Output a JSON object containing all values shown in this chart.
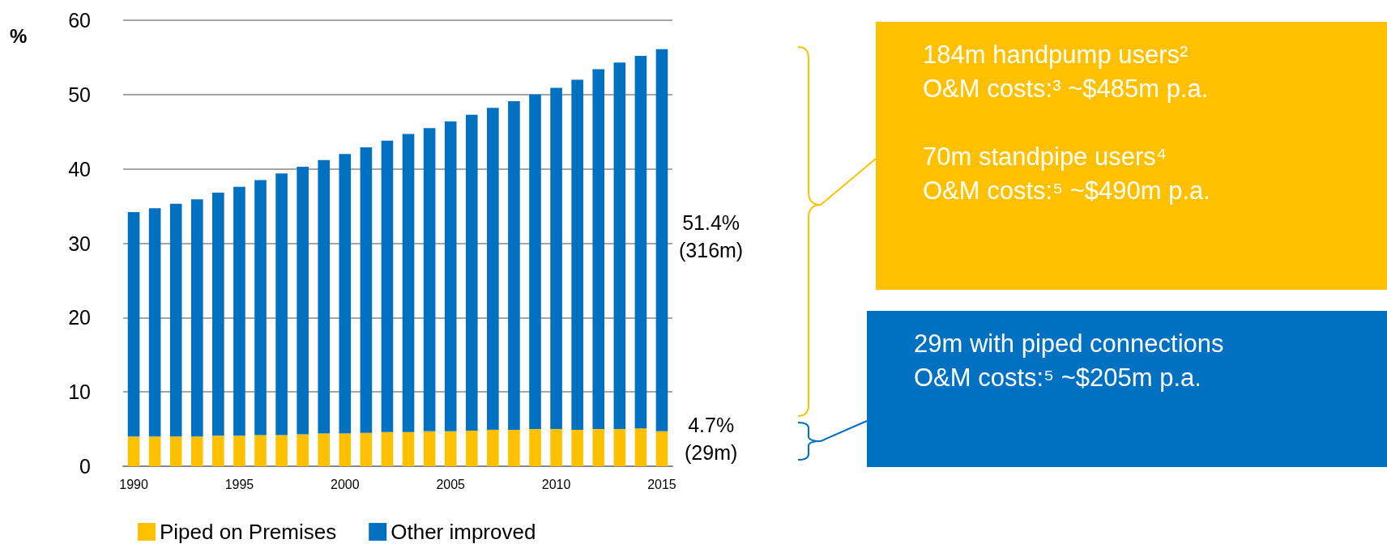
{
  "chart_data": {
    "type": "bar",
    "stacked": true,
    "ylabel": "%",
    "categories": [
      "1990",
      null,
      null,
      null,
      null,
      "1995",
      null,
      null,
      null,
      null,
      "2000",
      null,
      null,
      null,
      null,
      "2005",
      null,
      null,
      null,
      null,
      "2010",
      null,
      null,
      null,
      null,
      "2015"
    ],
    "series": [
      {
        "name": "Piped on Premises",
        "color": "#ffc000",
        "values": [
          4.0,
          4.0,
          4.0,
          4.0,
          4.1,
          4.1,
          4.2,
          4.2,
          4.3,
          4.4,
          4.4,
          4.5,
          4.6,
          4.6,
          4.7,
          4.7,
          4.8,
          4.9,
          4.9,
          5.0,
          5.0,
          4.9,
          5.0,
          5.0,
          5.1,
          4.7
        ]
      },
      {
        "name": "Other improved",
        "color": "#0070c0",
        "values": [
          30.2,
          30.7,
          31.3,
          31.9,
          32.7,
          33.5,
          34.3,
          35.2,
          36.0,
          36.8,
          37.6,
          38.4,
          39.2,
          40.1,
          40.8,
          41.7,
          42.5,
          43.3,
          44.2,
          45.0,
          45.9,
          47.1,
          48.4,
          49.3,
          50.1,
          51.4
        ]
      }
    ],
    "ylim": [
      0,
      60
    ],
    "yticks": [
      0,
      10,
      20,
      30,
      40,
      50,
      60
    ],
    "grid": "y",
    "legend": "bottom",
    "annotations": [
      "51.4%\n(316m)",
      "4.7%\n(29m)",
      "184m handpump users²\nO&M costs:³ ~$485m p.a.",
      "70m standpipe users⁴\nO&M costs:⁵ ~$490m p.a.",
      "29m with piped connections\nO&M costs:⁵ ~$205m p.a."
    ]
  }
}
